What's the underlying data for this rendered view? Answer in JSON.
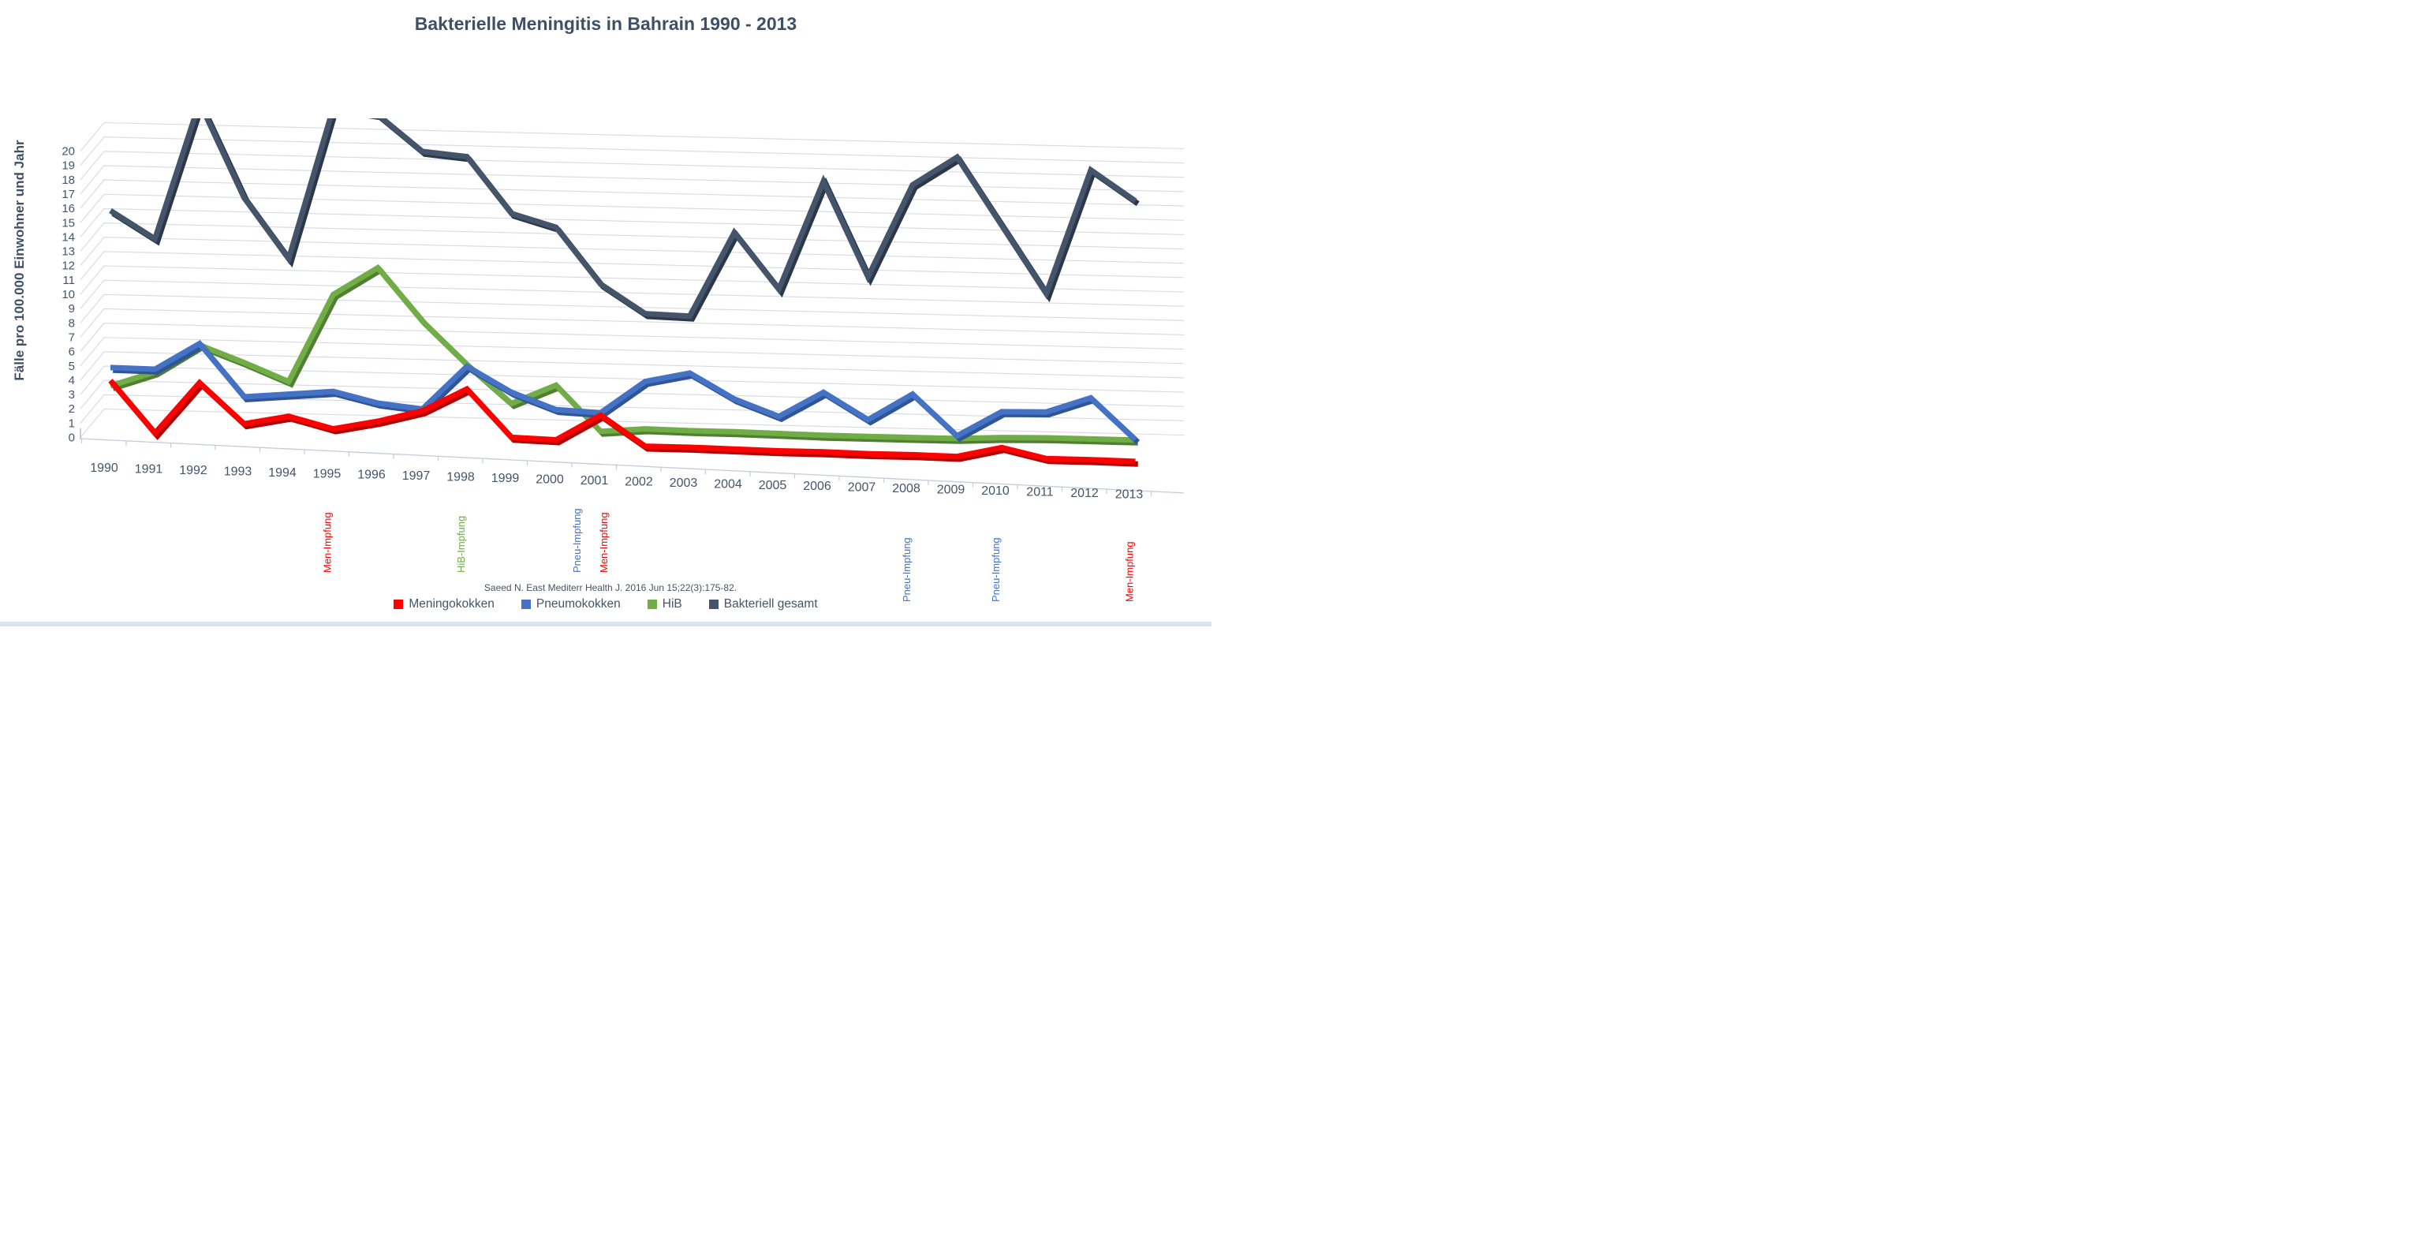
{
  "title": "Bakterielle Meningitis in Bahrain 1990 - 2013",
  "y_axis_title": "Fälle pro 100.000 Einwohner und Jahr",
  "source_citation": "Saeed N. East Mediterr Health J. 2016 Jun 15;22(3):175-82.",
  "colors": {
    "meningokokken": "#FF0000",
    "pneumokokken": "#4472C4",
    "hib": "#70AD47",
    "bakteriell_gesamt": "#44546A",
    "title_text": "#3F5066",
    "axis_text": "#44546A",
    "gridline": "#D6D9E4"
  },
  "chart_data": {
    "type": "line",
    "style": "3d-ribbon-line",
    "title": "Bakterielle Meningitis in Bahrain 1990 - 2013",
    "xlabel": "",
    "ylabel": "Fälle pro 100.000 Einwohner und Jahr",
    "ylim": [
      0,
      20
    ],
    "ytick_step": 1,
    "grid": true,
    "legend_position": "bottom",
    "categories": [
      1990,
      1991,
      1992,
      1993,
      1994,
      1995,
      1996,
      1997,
      1998,
      1999,
      2000,
      2001,
      2002,
      2003,
      2004,
      2005,
      2006,
      2007,
      2008,
      2009,
      2010,
      2011,
      2012,
      2013
    ],
    "series": [
      {
        "name": "Meningokokken",
        "color": "#FF0000",
        "edge_color": "#B00000",
        "values": [
          4.0,
          0.4,
          4.0,
          1.2,
          1.8,
          1.0,
          1.6,
          2.4,
          4.0,
          0.7,
          0.6,
          2.4,
          0.3,
          0.3,
          0.25,
          0.2,
          0.2,
          0.15,
          0.15,
          0.1,
          0.8,
          0.1,
          0.1,
          0.05
        ]
      },
      {
        "name": "Pneumokokken",
        "color": "#4472C4",
        "edge_color": "#2F5597",
        "values": [
          4.8,
          4.7,
          6.5,
          2.8,
          3.0,
          3.2,
          2.4,
          2.0,
          5.0,
          3.2,
          2.0,
          1.8,
          4.0,
          4.6,
          2.8,
          1.6,
          3.3,
          1.4,
          3.2,
          0.3,
          2.0,
          2.0,
          3.0,
          0.1
        ]
      },
      {
        "name": "HiB",
        "color": "#70AD47",
        "edge_color": "#507E32",
        "values": [
          3.3,
          4.3,
          6.2,
          5.0,
          3.7,
          9.8,
          11.7,
          8.0,
          5.0,
          2.3,
          3.6,
          0.4,
          0.6,
          0.5,
          0.45,
          0.35,
          0.25,
          0.2,
          0.15,
          0.1,
          0.2,
          0.2,
          0.15,
          0.1
        ]
      },
      {
        "name": "Bakteriell gesamt",
        "color": "#44546A",
        "edge_color": "#2C3847",
        "values": [
          16.5,
          14.5,
          24,
          17.3,
          13,
          23.5,
          23,
          20.4,
          20,
          16,
          15,
          11,
          8.9,
          8.7,
          14.5,
          10.5,
          18,
          11.3,
          17.7,
          19.6,
          14.8,
          10,
          18.6,
          16.4
        ],
        "note": "values above ~20.5 exceed the plot top and are clipped in the figure (1992, 1995, 1996)"
      }
    ],
    "annotations": [
      {
        "text": "Men-Impfung",
        "color": "#FF0000",
        "year": 1995
      },
      {
        "text": "HiB-Impfung",
        "color": "#70AD47",
        "year": 1998
      },
      {
        "text": "Pneu-Impfung",
        "color": "#4472C4",
        "year": 2000.6
      },
      {
        "text": "Men-Impfung",
        "color": "#FF0000",
        "year": 2001.2
      },
      {
        "text": "Pneu-Impfung",
        "color": "#4472C4",
        "year": 2008
      },
      {
        "text": "Pneu-Impfung",
        "color": "#4472C4",
        "year": 2010
      },
      {
        "text": "Men-Impfung",
        "color": "#FF0000",
        "year": 2013
      }
    ],
    "legend": [
      "Meningokokken",
      "Pneumokokken",
      "HiB",
      "Bakteriell gesamt"
    ]
  }
}
